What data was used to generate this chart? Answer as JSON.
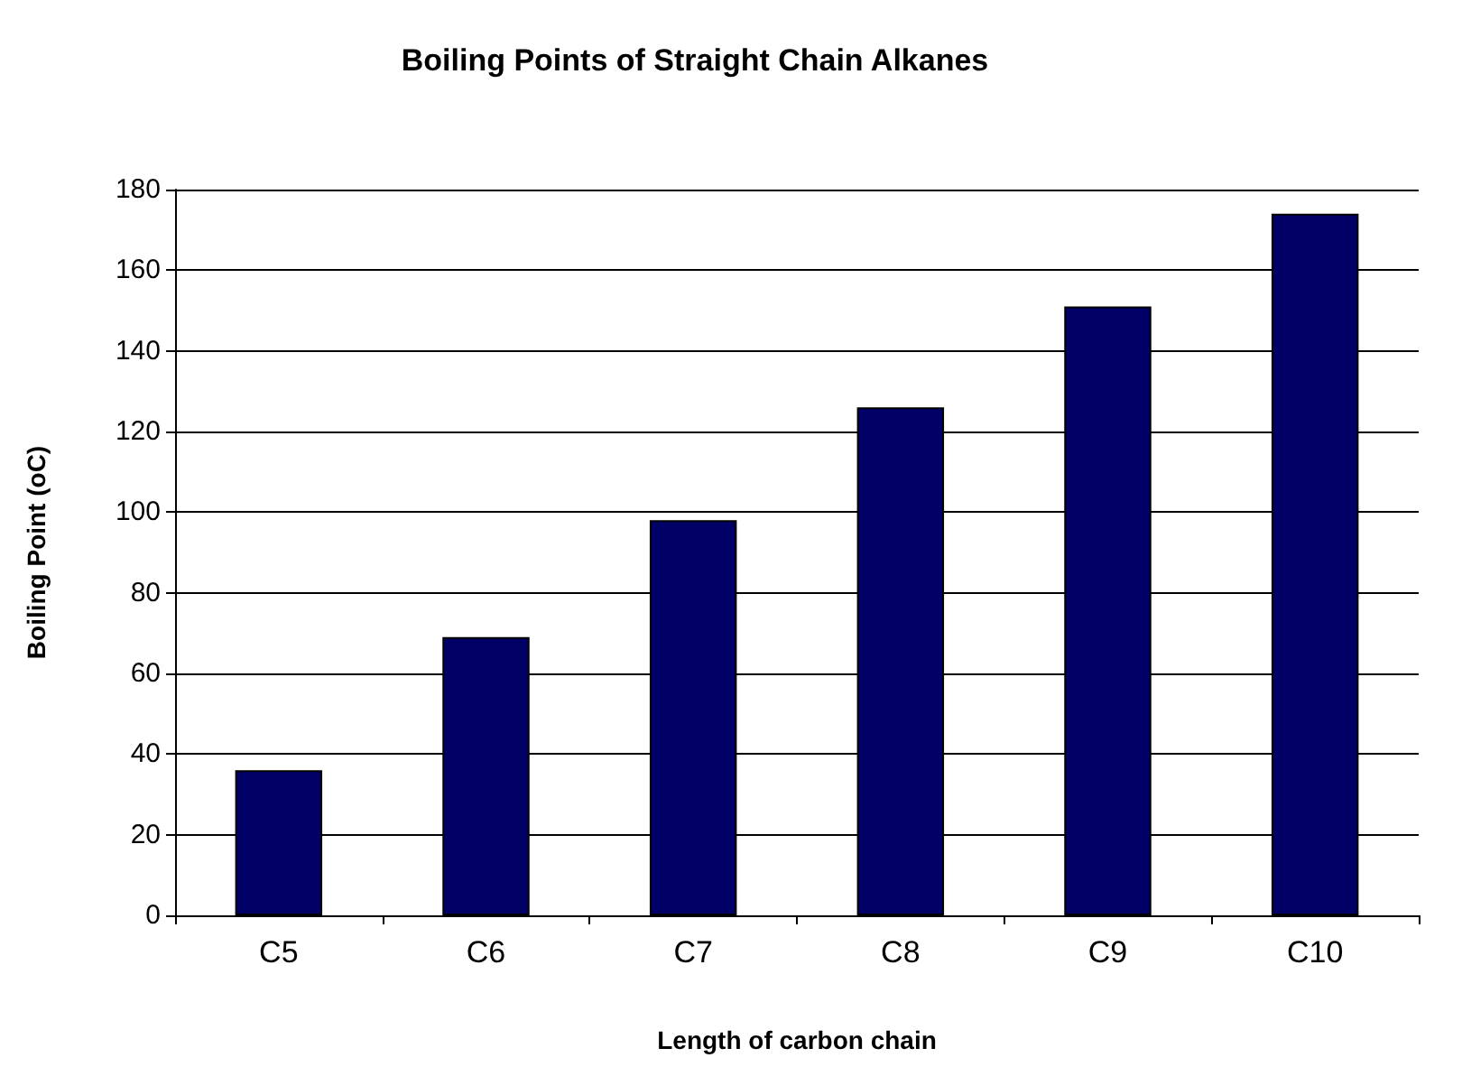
{
  "chart_data": {
    "type": "bar",
    "title": "Boiling Points of Straight Chain Alkanes",
    "xlabel": "Length of carbon chain",
    "ylabel": "Boiling Point (oC)",
    "categories": [
      "C5",
      "C6",
      "C7",
      "C8",
      "C9",
      "C10"
    ],
    "values": [
      36,
      69,
      98,
      126,
      151,
      174
    ],
    "color": "#000066",
    "ylim": [
      0,
      180
    ],
    "yticks": [
      0,
      20,
      40,
      60,
      80,
      100,
      120,
      140,
      160,
      180
    ],
    "grid": "y"
  }
}
